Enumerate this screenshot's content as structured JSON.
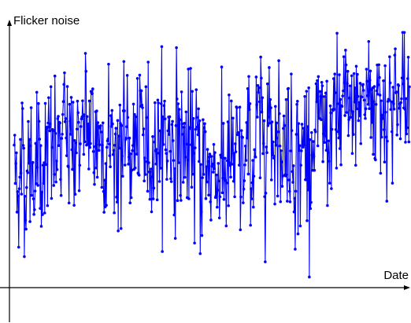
{
  "chart_data": {
    "type": "line",
    "title": "",
    "xlabel": "Date",
    "ylabel": "Flicker noise",
    "grid": false,
    "legend": "none",
    "markers": true,
    "x_ticks_labeled": false,
    "y_ticks_labeled": false,
    "n_points": 700,
    "ylim": [
      -1.1,
      3.6
    ],
    "series": [
      {
        "color": "#0000ff",
        "values": []
      }
    ]
  }
}
